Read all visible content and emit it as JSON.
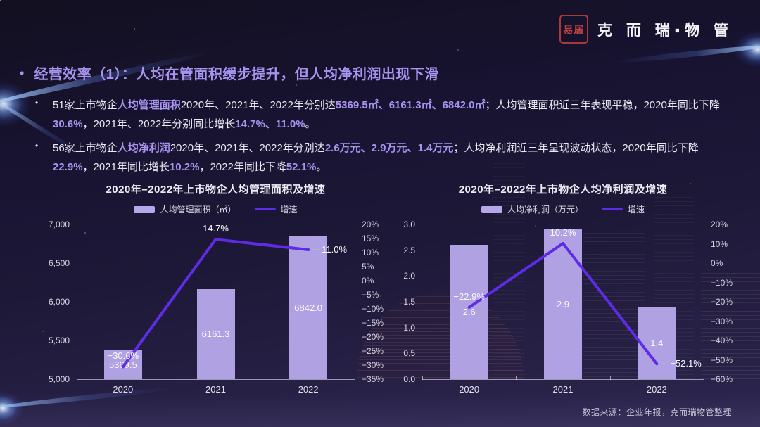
{
  "colors": {
    "accent": "#a893ee",
    "bar": "#b5a7e9",
    "line": "#5e2ce4",
    "seal_red": "#b03a3a"
  },
  "logo": {
    "seal_text": "易居",
    "brand": "克 而 瑞▪物 管"
  },
  "title": {
    "bullet": "•",
    "text": "经营效率（1）：人均在管面积缓步提升，但人均净利润出现下滑"
  },
  "list_marker": "•",
  "bullets": [
    {
      "segments": [
        {
          "t": "51家上市物企",
          "h": false
        },
        {
          "t": "人均管理面积",
          "h": true
        },
        {
          "t": "2020年、2021年、2022年分别达",
          "h": false
        },
        {
          "t": "5369.5㎡、6161.3㎡、6842.0㎡",
          "h": true
        },
        {
          "t": "；人均管理面积近三年表现平稳，2020年同比下降",
          "h": false
        },
        {
          "t": "30.6%",
          "h": true
        },
        {
          "t": "，2021年、2022年分别同比增长",
          "h": false
        },
        {
          "t": "14.7%、11.0%",
          "h": true
        },
        {
          "t": "。",
          "h": false
        }
      ]
    },
    {
      "segments": [
        {
          "t": "56家上市物企",
          "h": false
        },
        {
          "t": "人均净利润",
          "h": true
        },
        {
          "t": "2020年、2021年、2022年分别达",
          "h": false
        },
        {
          "t": "2.6万元、2.9万元、1.4万元",
          "h": true
        },
        {
          "t": "；人均净利润近三年呈现波动状态，2020年同比下降",
          "h": false
        },
        {
          "t": "22.9%",
          "h": true
        },
        {
          "t": "，2021年同比增长",
          "h": false
        },
        {
          "t": "10.2%",
          "h": true
        },
        {
          "t": "，2022年同比下降",
          "h": false
        },
        {
          "t": "52.1%",
          "h": true
        },
        {
          "t": "。",
          "h": false
        }
      ]
    }
  ],
  "chart_data": [
    {
      "type": "bar",
      "title": "2020年–2022年上市物企人均管理面积及增速",
      "categories": [
        "2020",
        "2021",
        "2022"
      ],
      "bar_series": {
        "name": "人均管理面积（㎡）",
        "values": [
          5369.5,
          6161.3,
          6842.0
        ],
        "labels": [
          "5369.5",
          "6161.3",
          "6842.0"
        ]
      },
      "line_series": {
        "name": "增速",
        "values": [
          -30.6,
          14.7,
          11.0
        ],
        "labels": [
          "−30.6%",
          "14.7%",
          "11.0%"
        ],
        "label_pos": [
          "above",
          "above",
          "right"
        ]
      },
      "left_axis": {
        "min": 5000,
        "max": 7000,
        "step": 500,
        "ticks": [
          "5,000",
          "5,500",
          "6,000",
          "6,500",
          "7,000"
        ]
      },
      "right_axis": {
        "min": -35,
        "max": 20,
        "step": 5,
        "ticks": [
          "−35%",
          "−30%",
          "−25%",
          "−20%",
          "−15%",
          "−10%",
          "−5%",
          "0%",
          "5%",
          "10%",
          "15%",
          "20%"
        ]
      },
      "legend_position": "top",
      "grid": false
    },
    {
      "type": "bar",
      "title": "2020年–2022年上市物企人均净利润及增速",
      "categories": [
        "2020",
        "2021",
        "2022"
      ],
      "bar_series": {
        "name": "人均净利润（万元）",
        "values": [
          2.6,
          2.9,
          1.4
        ],
        "labels": [
          "2.6",
          "2.9",
          "1.4"
        ]
      },
      "line_series": {
        "name": "增速",
        "values": [
          -22.9,
          10.2,
          -52.1
        ],
        "labels": [
          "−22.9%",
          "10.2%",
          "−52.1%"
        ],
        "label_pos": [
          "above",
          "above",
          "right"
        ]
      },
      "left_axis": {
        "min": 0,
        "max": 3,
        "step": 0.5,
        "ticks": [
          "0.0",
          "0.5",
          "1.0",
          "1.5",
          "2.0",
          "2.5",
          "3.0"
        ]
      },
      "right_axis": {
        "min": -60,
        "max": 20,
        "step": 10,
        "ticks": [
          "−60%",
          "−50%",
          "−40%",
          "−30%",
          "−20%",
          "−10%",
          "0%",
          "10%",
          "20%"
        ]
      },
      "legend_position": "top",
      "grid": false
    }
  ],
  "source": "数据来源：企业年报，克而瑞物管整理"
}
